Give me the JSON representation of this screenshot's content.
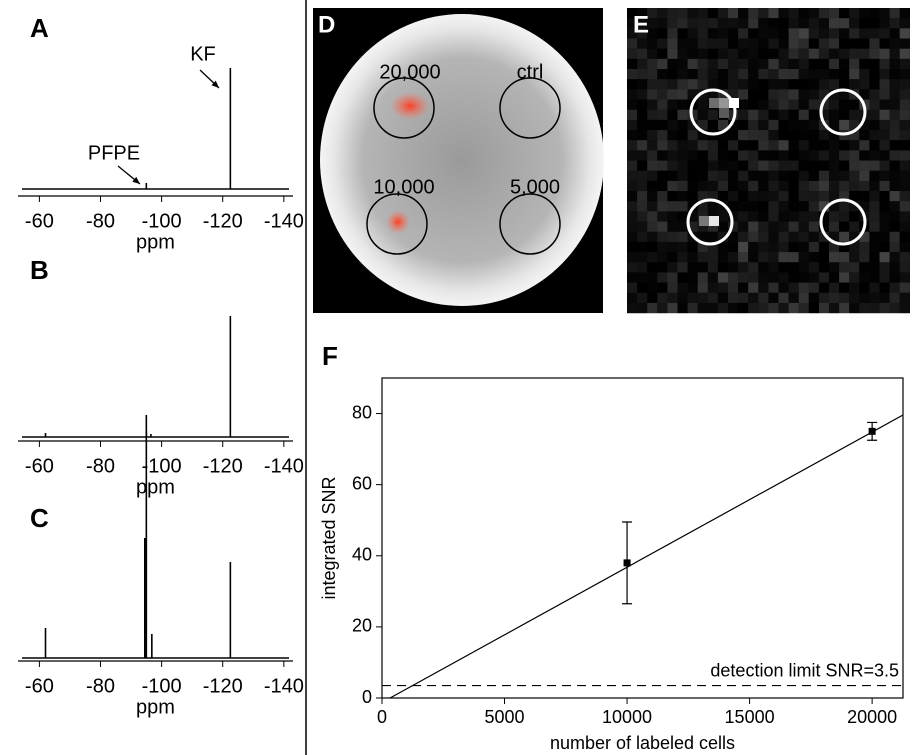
{
  "chart_data": [
    {
      "type": "spectrum",
      "label": "A",
      "x": [
        -95,
        -122.5
      ],
      "values": [
        6,
        121
      ],
      "xlim": [
        -53,
        -143
      ],
      "ylim": [
        0,
        129
      ],
      "xticks": [
        -60,
        -80,
        -100,
        -120,
        -140
      ],
      "xlabel": "ppm",
      "annotations": [
        "PFPE",
        "KF"
      ],
      "color": "#000000"
    },
    {
      "type": "spectrum",
      "label": "B",
      "x": [
        -62,
        -95,
        -96.5,
        -122.5
      ],
      "values": [
        4,
        22,
        3,
        121
      ],
      "xlim": [
        -53,
        -143
      ],
      "ylim": [
        0,
        127
      ],
      "xticks": [
        -60,
        -80,
        -100,
        -120,
        -140
      ],
      "xlabel": "ppm",
      "color": "#000000"
    },
    {
      "type": "spectrum",
      "label": "C",
      "x": [
        -62,
        -94.5,
        -95,
        -96.8,
        -122.5
      ],
      "values": [
        30,
        120,
        227,
        24,
        96
      ],
      "xlim": [
        -53,
        -143
      ],
      "ylim": [
        0,
        233
      ],
      "xticks": [
        -60,
        -80,
        -100,
        -120,
        -140
      ],
      "xlabel": "ppm",
      "color": "#000000"
    },
    {
      "type": "scatter",
      "label": "F",
      "x": [
        10000,
        20000
      ],
      "values": [
        38,
        75
      ],
      "errors": [
        11.5,
        2.5
      ],
      "fit": {
        "x": [
          330,
          21260
        ],
        "values": [
          0,
          79.6
        ]
      },
      "threshold": 3.5,
      "threshold_label": "detection limit SNR=3.5",
      "xlim": [
        0,
        21260
      ],
      "ylim": [
        0,
        90
      ],
      "xticks": [
        0,
        5000,
        10000,
        15000,
        20000
      ],
      "yticks": [
        0,
        20,
        40,
        60,
        80
      ],
      "xlabel": "number of labeled cells",
      "ylabel": "integrated SNR",
      "color": "#000000"
    }
  ],
  "panels": [
    {
      "label": "D",
      "annotations": [
        "20,000",
        "ctrl",
        "10,000",
        "5,000"
      ]
    },
    {
      "label": "E"
    }
  ]
}
